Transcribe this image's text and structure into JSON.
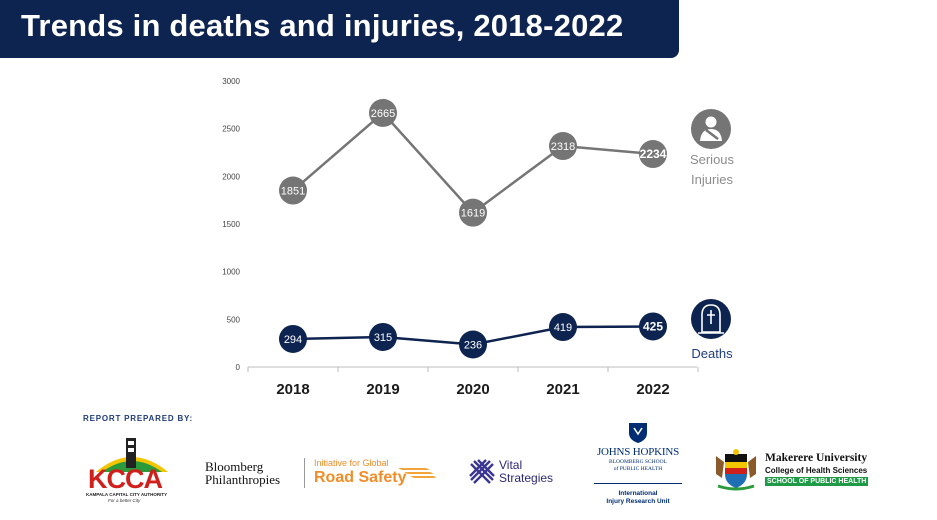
{
  "title": "Trends in deaths and injuries, 2018-2022",
  "chart_data": {
    "type": "line",
    "x": [
      "2018",
      "2019",
      "2020",
      "2021",
      "2022"
    ],
    "yticks": [
      0,
      500,
      1000,
      1500,
      2000,
      2500,
      3000
    ],
    "ylim": [
      0,
      3000
    ],
    "grid": false,
    "series": [
      {
        "name_lines": [
          "Serious",
          "Injuries"
        ],
        "values": [
          1851,
          2665,
          1619,
          2318,
          2234
        ],
        "color": "#757575",
        "label_color": "#8c8c8c",
        "icon": "injured-person-icon"
      },
      {
        "name_lines": [
          "Deaths"
        ],
        "values": [
          294,
          315,
          236,
          419,
          425
        ],
        "color": "#0d2350",
        "label_color": "#1f3d7a",
        "icon": "gravestone-icon"
      }
    ]
  },
  "footer": {
    "report_label": "REPORT PREPARED BY:",
    "logos": {
      "kcca": {
        "name": "KCCA",
        "subtitle": "KAMPALA CAPITAL CITY AUTHORITY",
        "motto": "For a better City"
      },
      "bloomberg": {
        "line1": "Bloomberg",
        "line2": "Philanthropies"
      },
      "road_safety": {
        "line1": "Initiative for Global",
        "line2": "Road Safety"
      },
      "vital": {
        "line1": "Vital",
        "line2": "Strategies"
      },
      "jhu": {
        "name": "JOHNS HOPKINS",
        "sub1": "BLOOMBERG SCHOOL",
        "sub2": "of PUBLIC HEALTH",
        "unit1": "International",
        "unit2": "Injury Research Unit"
      },
      "makerere": {
        "name": "Makerere University",
        "sub": "College of Health Sciences",
        "school": "SCHOOL OF PUBLIC HEALTH"
      }
    }
  }
}
